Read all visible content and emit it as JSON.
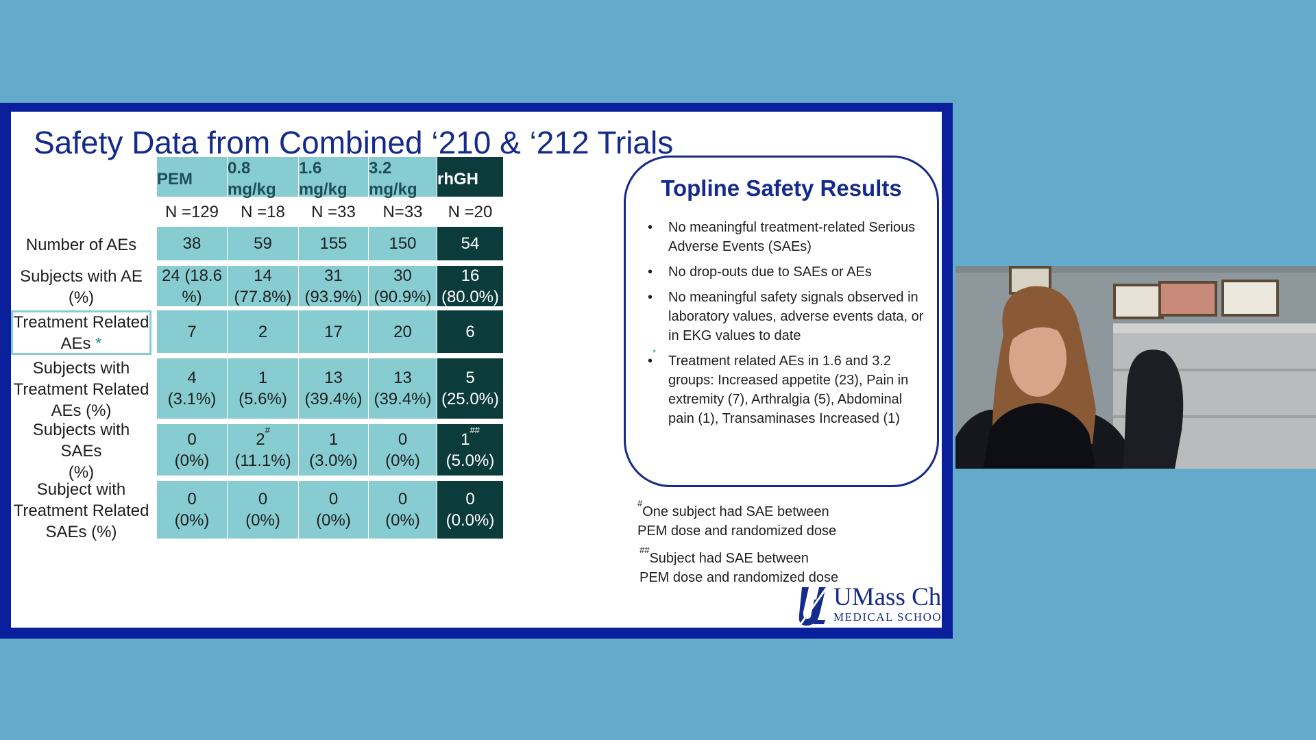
{
  "slide": {
    "title": "Safety Data from Combined ‘210 & ‘212 Trials"
  },
  "table": {
    "columns": [
      {
        "line1": "PEM",
        "line2": "",
        "n": "N =129"
      },
      {
        "line1": "0.8",
        "line2": "mg/kg",
        "n": "N =18"
      },
      {
        "line1": "1.6",
        "line2": "mg/kg",
        "n": "N =33"
      },
      {
        "line1": "3.2",
        "line2": "mg/kg",
        "n": "N=33"
      },
      {
        "line1": "rhGH",
        "line2": "",
        "n": "N =20"
      }
    ],
    "rows": [
      {
        "label1": "Number of AEs",
        "label2": "",
        "label3": "",
        "cells": [
          {
            "a": "38",
            "b": ""
          },
          {
            "a": "59",
            "b": ""
          },
          {
            "a": "155",
            "b": ""
          },
          {
            "a": "150",
            "b": ""
          },
          {
            "a": "54",
            "b": ""
          }
        ]
      },
      {
        "label1": "Subjects with AE",
        "label2": "(%)",
        "label3": "",
        "cells": [
          {
            "a": "24  (18.6",
            "b": "%)"
          },
          {
            "a": "14",
            "b": "(77.8%)"
          },
          {
            "a": "31",
            "b": "(93.9%)"
          },
          {
            "a": "30",
            "b": "(90.9%)"
          },
          {
            "a": "16",
            "b": "(80.0%)"
          }
        ]
      },
      {
        "label1": "Treatment Related",
        "label2": "AEs",
        "label3": "",
        "cells": [
          {
            "a": "7",
            "b": ""
          },
          {
            "a": "2",
            "b": ""
          },
          {
            "a": "17",
            "b": ""
          },
          {
            "a": "20",
            "b": ""
          },
          {
            "a": "6",
            "b": ""
          }
        ]
      },
      {
        "label1": "Subjects with",
        "label2": "Treatment Related",
        "label3": "AEs (%)",
        "cells": [
          {
            "a": "4",
            "b": "(3.1%)"
          },
          {
            "a": "1",
            "b": "(5.6%)"
          },
          {
            "a": "13",
            "b": "(39.4%)"
          },
          {
            "a": "13",
            "b": "(39.4%)"
          },
          {
            "a": "5",
            "b": "(25.0%)"
          }
        ]
      },
      {
        "label1": "Subjects with SAEs",
        "label2": "(%)",
        "label3": "",
        "cells": [
          {
            "a": "0",
            "b": "(0%)"
          },
          {
            "a": "2",
            "b": "(11.1%)"
          },
          {
            "a": "1",
            "b": "(3.0%)"
          },
          {
            "a": "0",
            "b": "(0%)"
          },
          {
            "a": "1",
            "b": "(5.0%)"
          }
        ]
      },
      {
        "label1": "Subject with",
        "label2": "Treatment Related",
        "label3": "SAEs (%)",
        "cells": [
          {
            "a": "0",
            "b": "(0%)"
          },
          {
            "a": "0",
            "b": "(0%)"
          },
          {
            "a": "0",
            "b": "(0%)"
          },
          {
            "a": "0",
            "b": "(0%)"
          },
          {
            "a": "0",
            "b": "(0.0%)"
          }
        ]
      }
    ],
    "marks": {
      "asterisk": "*",
      "hash": "#",
      "double_hash": "##"
    }
  },
  "topline": {
    "title": "Topline Safety Results",
    "bullet": "•",
    "items": [
      "No meaningful treatment-related Serious Adverse Events (SAEs)",
      "No drop-outs due to SAEs or AEs",
      "No meaningful safety signals observed in laboratory values, adverse events data, or in EKG values to date",
      "Treatment related AEs in 1.6 and 3.2 groups: Increased appetite (23), Pain in extremity (7), Arthralgia (5), Abdominal pain (1), Transaminases Increased (1)"
    ]
  },
  "footnotes": {
    "hash_line1": "One subject had SAE between",
    "hash_line2": "PEM dose and randomized dose",
    "double_hash_line1": "Subject had SAE between",
    "double_hash_line2": "PEM dose and randomized dose"
  },
  "logo": {
    "name": "UMass Chan",
    "subtitle": "MEDICAL SCHOOL"
  },
  "colors": {
    "frame": "#0a1f9c",
    "title": "#142a8c",
    "teal": "#86ccd1",
    "dark_teal": "#0c3b3c",
    "background": "#63aacb"
  }
}
